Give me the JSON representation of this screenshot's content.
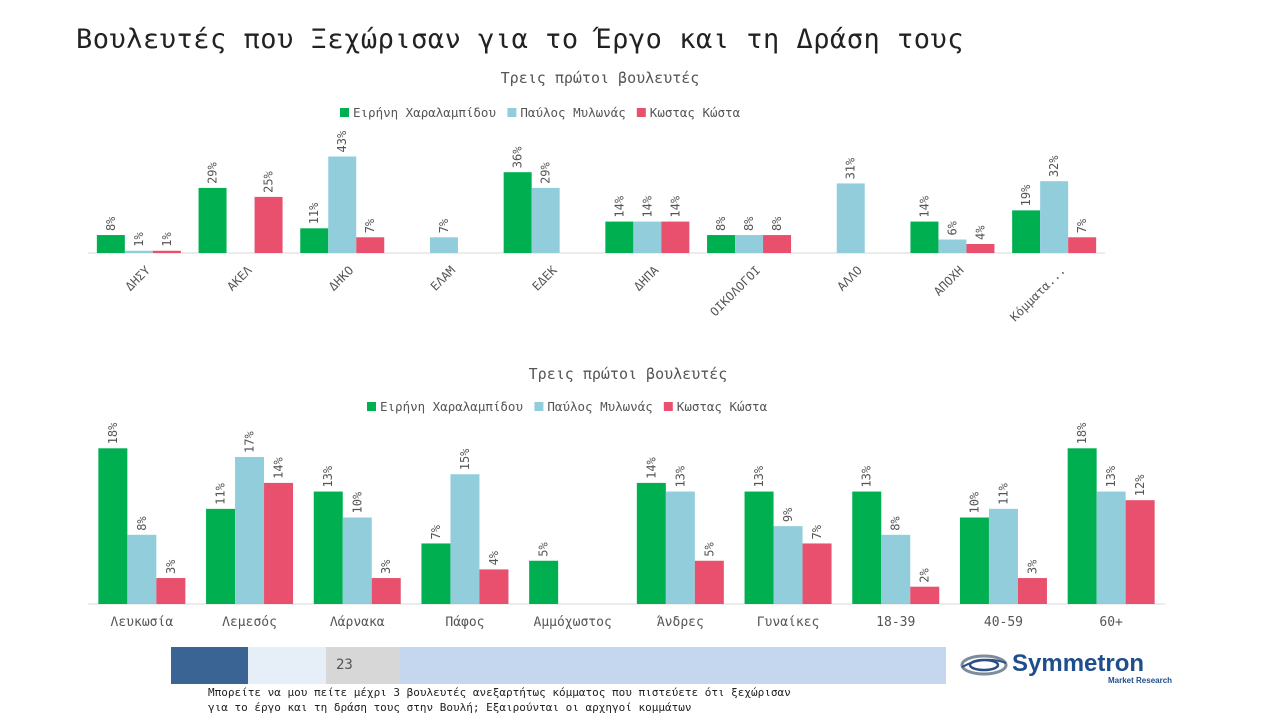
{
  "page": {
    "title": "Βουλευτές που Ξεχώρισαν για το Έργο και τη Δράση τους",
    "page_number": "23",
    "footnote_line1": "Μπορείτε να μου πείτε μέχρι 3 βουλευτές ανεξαρτήτως κόμματος που πιστεύετε ότι ξεχώρισαν",
    "footnote_line2": "για το έργο και τη δράση τους στην Βουλή; Εξαιρούνται οι αρχηγοί κομμάτων",
    "logo_name": "Symmetron",
    "logo_sub": "Market Research"
  },
  "colors": {
    "series": [
      "#00b050",
      "#92cddc",
      "#e8506e"
    ]
  },
  "chart_data": [
    {
      "type": "bar",
      "title": "Τρεις πρώτοι βουλευτές",
      "categories": [
        "ΔΗΣΥ",
        "ΑΚΕΛ",
        "ΔΗΚΟ",
        "ΕΛΑΜ",
        "ΕΔΕΚ",
        "ΔΗΠΑ",
        "ΟΙΚΟΛΟΓΟΙ",
        "ΑΛΛΟ",
        "ΑΠΟΧΗ",
        "Κόμματα..."
      ],
      "series": [
        {
          "name": "Ειρήνη Χαραλαμπίδου",
          "values": [
            8,
            29,
            11,
            null,
            36,
            14,
            8,
            null,
            14,
            19
          ]
        },
        {
          "name": "Παύλος Μυλωνάς",
          "values": [
            1,
            null,
            43,
            7,
            29,
            14,
            8,
            31,
            6,
            32
          ]
        },
        {
          "name": "Κωστας Κώστα",
          "values": [
            1,
            25,
            7,
            null,
            null,
            14,
            8,
            null,
            4,
            7
          ]
        }
      ],
      "value_suffix": "%",
      "ylim": [
        0,
        45
      ],
      "legend": "top",
      "grid": false
    },
    {
      "type": "bar",
      "title": "Τρεις πρώτοι βουλευτές",
      "categories": [
        "Λευκωσία",
        "Λεμεσός",
        "Λάρνακα",
        "Πάφος",
        "Αμμόχωστος",
        "Άνδρες",
        "Γυναίκες",
        "18-39",
        "40-59",
        "60+"
      ],
      "series": [
        {
          "name": "Ειρήνη Χαραλαμπίδου",
          "values": [
            18,
            11,
            13,
            7,
            5,
            14,
            13,
            13,
            10,
            18
          ]
        },
        {
          "name": "Παύλος Μυλωνάς",
          "values": [
            8,
            17,
            10,
            15,
            null,
            13,
            9,
            8,
            11,
            13
          ]
        },
        {
          "name": "Κωστας Κώστα",
          "values": [
            3,
            14,
            3,
            4,
            null,
            5,
            7,
            2,
            3,
            12
          ]
        }
      ],
      "value_suffix": "%",
      "ylim": [
        0,
        20
      ],
      "legend": "top",
      "grid": false
    }
  ]
}
